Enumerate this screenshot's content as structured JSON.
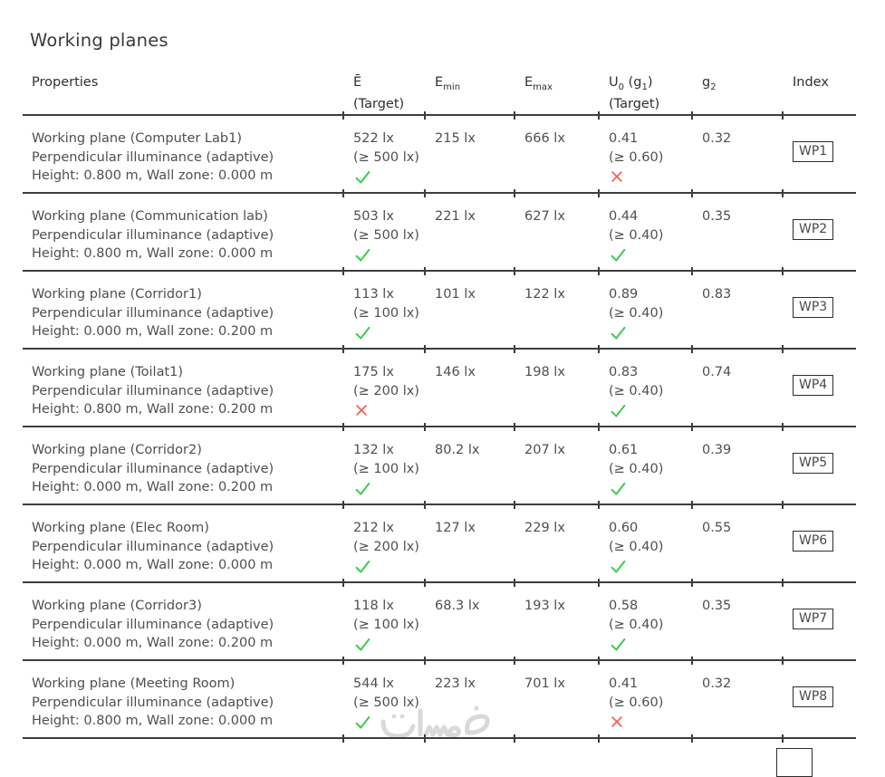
{
  "page": {
    "title": "Working planes"
  },
  "table": {
    "headers": {
      "properties": "Properties",
      "e_avg": "Ē",
      "e_avg_line2": "(Target)",
      "emin_base": "E",
      "emin_sub": "min",
      "emax_base": "E",
      "emax_sub": "max",
      "u0_base": "U",
      "u0_sub": "0",
      "u0_mid": " (g",
      "u0_sub2": "1",
      "u0_close": ")",
      "u0_line2": "(Target)",
      "g2_base": "g",
      "g2_sub": "2",
      "index": "Index"
    },
    "rows": [
      {
        "name": "Working plane (Computer Lab1)",
        "line2": "Perpendicular illuminance (adaptive)",
        "line3": "Height: 0.800 m, Wall zone: 0.000 m",
        "e_avg": "522 lx",
        "e_target": "(≥ 500 lx)",
        "e_result": "pass",
        "e_min": "215 lx",
        "e_max": "666 lx",
        "u0": "0.41",
        "u0_target": "(≥ 0.60)",
        "u0_result": "fail",
        "g2": "0.32",
        "index": "WP1"
      },
      {
        "name": "Working plane (Communication lab)",
        "line2": "Perpendicular illuminance (adaptive)",
        "line3": "Height: 0.800 m, Wall zone: 0.000 m",
        "e_avg": "503 lx",
        "e_target": "(≥ 500 lx)",
        "e_result": "pass",
        "e_min": "221 lx",
        "e_max": "627 lx",
        "u0": "0.44",
        "u0_target": "(≥ 0.40)",
        "u0_result": "pass",
        "g2": "0.35",
        "index": "WP2"
      },
      {
        "name": "Working plane (Corridor1)",
        "line2": "Perpendicular illuminance (adaptive)",
        "line3": "Height: 0.000 m, Wall zone: 0.200 m",
        "e_avg": "113 lx",
        "e_target": "(≥ 100 lx)",
        "e_result": "pass",
        "e_min": "101 lx",
        "e_max": "122 lx",
        "u0": "0.89",
        "u0_target": "(≥ 0.40)",
        "u0_result": "pass",
        "g2": "0.83",
        "index": "WP3"
      },
      {
        "name": "Working plane (Toilat1)",
        "line2": "Perpendicular illuminance (adaptive)",
        "line3": "Height: 0.800 m, Wall zone: 0.200 m",
        "e_avg": "175 lx",
        "e_target": "(≥ 200 lx)",
        "e_result": "fail",
        "e_min": "146 lx",
        "e_max": "198 lx",
        "u0": "0.83",
        "u0_target": "(≥ 0.40)",
        "u0_result": "pass",
        "g2": "0.74",
        "index": "WP4"
      },
      {
        "name": "Working plane (Corridor2)",
        "line2": "Perpendicular illuminance (adaptive)",
        "line3": "Height: 0.000 m, Wall zone: 0.200 m",
        "e_avg": "132 lx",
        "e_target": "(≥ 100 lx)",
        "e_result": "pass",
        "e_min": "80.2 lx",
        "e_max": "207 lx",
        "u0": "0.61",
        "u0_target": "(≥ 0.40)",
        "u0_result": "pass",
        "g2": "0.39",
        "index": "WP5"
      },
      {
        "name": "Working plane (Elec Room)",
        "line2": "Perpendicular illuminance (adaptive)",
        "line3": "Height: 0.000 m, Wall zone: 0.000 m",
        "e_avg": "212 lx",
        "e_target": "(≥ 200 lx)",
        "e_result": "pass",
        "e_min": "127 lx",
        "e_max": "229 lx",
        "u0": "0.60",
        "u0_target": "(≥ 0.40)",
        "u0_result": "pass",
        "g2": "0.55",
        "index": "WP6"
      },
      {
        "name": "Working plane (Corridor3)",
        "line2": "Perpendicular illuminance (adaptive)",
        "line3": "Height: 0.000 m, Wall zone: 0.200 m",
        "e_avg": "118 lx",
        "e_target": "(≥ 100 lx)",
        "e_result": "pass",
        "e_min": "68.3 lx",
        "e_max": "193 lx",
        "u0": "0.58",
        "u0_target": "(≥ 0.40)",
        "u0_result": "pass",
        "g2": "0.35",
        "index": "WP7"
      },
      {
        "name": "Working plane (Meeting Room)",
        "line2": "Perpendicular illuminance (adaptive)",
        "line3": "Height: 0.800 m, Wall zone: 0.000 m",
        "e_avg": "544 lx",
        "e_target": "(≥ 500 lx)",
        "e_result": "pass",
        "e_min": "223 lx",
        "e_max": "701 lx",
        "u0": "0.41",
        "u0_target": "(≥ 0.60)",
        "u0_result": "fail",
        "g2": "0.32",
        "index": "WP8"
      }
    ]
  },
  "watermark": {
    "text": "خمسات"
  },
  "colors": {
    "pass_green": "#3ec94e",
    "fail_red": "#f0635a",
    "rule": "#3d3d3d",
    "header_text": "#2f2f2f",
    "body_text": "#4f4f4f",
    "box_border": "#2d2d2d",
    "watermark": "#d9d9d9"
  }
}
